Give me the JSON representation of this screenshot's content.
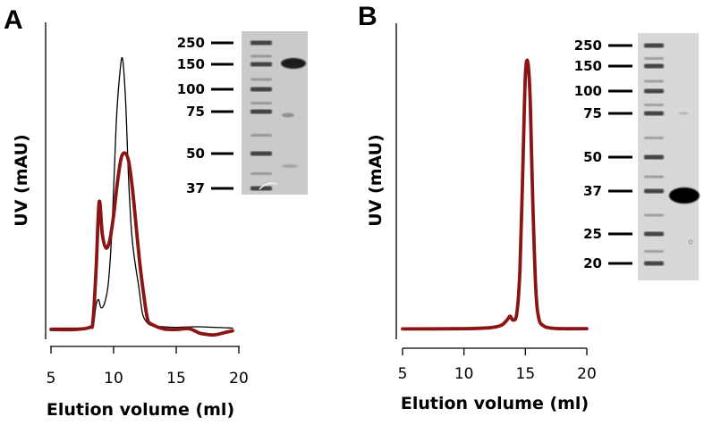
{
  "chart_data": [
    {
      "type": "line",
      "panel_label": "A",
      "xlabel": "Elution volume (ml)",
      "ylabel": "UV (mAU)",
      "xlim": [
        5,
        20
      ],
      "ylim": [
        0,
        100
      ],
      "xticks": [
        5,
        10,
        15,
        20
      ],
      "y_tick_labels": false,
      "grid": false,
      "legend": "none",
      "series": [
        {
          "color": "#000000",
          "line_style": "thin",
          "x": [
            5,
            7,
            8.2,
            8.4,
            8.6,
            8.8,
            9.0,
            9.3,
            9.6,
            9.9,
            10.2,
            10.45,
            10.7,
            10.95,
            11.2,
            11.45,
            11.7,
            12.0,
            12.3,
            12.6,
            13,
            14,
            15,
            16.5,
            18,
            19.5
          ],
          "y": [
            0.5,
            0.5,
            0.8,
            2,
            9,
            11,
            8,
            10,
            18,
            40,
            75,
            92,
            100,
            85,
            55,
            35,
            25,
            16,
            6,
            3,
            1.5,
            1,
            0.8,
            1,
            0.8,
            0.5
          ]
        },
        {
          "color": "#8b1414",
          "line_style": "thick",
          "x": [
            5,
            7,
            8.1,
            8.35,
            8.6,
            8.85,
            9.1,
            9.4,
            9.7,
            10.0,
            10.3,
            10.6,
            10.9,
            11.2,
            11.5,
            11.8,
            12.1,
            12.4,
            12.7,
            13.0,
            14,
            15,
            16,
            16.6,
            17,
            18,
            19,
            19.5
          ],
          "y": [
            0,
            0,
            0.8,
            3,
            22,
            47,
            35,
            30,
            33,
            42,
            54,
            63,
            65,
            62,
            52,
            38,
            24,
            13,
            4,
            2,
            0.2,
            0,
            0.3,
            -0.8,
            -1.5,
            -2,
            -1,
            -0.5
          ]
        }
      ],
      "inset_gel": {
        "marker_labels": [
          "250",
          "150",
          "100",
          "75",
          "50",
          "37"
        ],
        "marker_kda": [
          250,
          150,
          100,
          75,
          50,
          37
        ]
      }
    },
    {
      "type": "line",
      "panel_label": "B",
      "xlabel": "Elution volume (ml)",
      "ylabel": "UV (mAU)",
      "xlim": [
        5,
        20
      ],
      "ylim": [
        0,
        100
      ],
      "xticks": [
        5,
        10,
        15,
        20
      ],
      "y_tick_labels": false,
      "grid": false,
      "legend": "none",
      "series": [
        {
          "color": "#8b1414",
          "line_style": "thick",
          "x": [
            5,
            10,
            12,
            13.0,
            13.5,
            13.75,
            14.0,
            14.3,
            14.55,
            14.8,
            15.0,
            15.2,
            15.4,
            15.6,
            15.85,
            16.1,
            16.5,
            17,
            18,
            20
          ],
          "y": [
            0.2,
            0.3,
            0.6,
            1.5,
            3.5,
            5,
            3.5,
            6,
            22,
            62,
            95,
            100,
            85,
            48,
            15,
            4,
            1.3,
            0.6,
            0.3,
            0.3
          ]
        }
      ],
      "inset_gel": {
        "marker_labels": [
          "250",
          "150",
          "100",
          "75",
          "50",
          "37",
          "25",
          "20"
        ],
        "marker_kda": [
          250,
          150,
          100,
          75,
          50,
          37,
          25,
          20
        ]
      }
    }
  ]
}
